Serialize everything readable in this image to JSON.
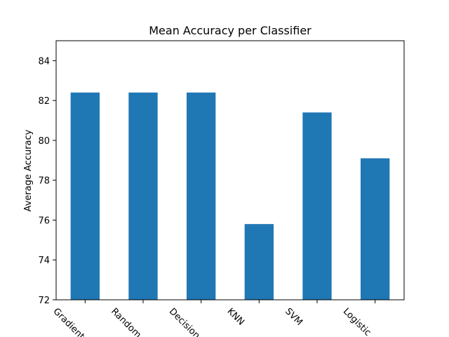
{
  "chart_data": {
    "type": "bar",
    "title": "Mean Accuracy per Classifier",
    "xlabel": "",
    "ylabel": "Average Accuracy",
    "categories": [
      "Gradient Boosting",
      "Random Forest",
      "Decision Tree",
      "KNN",
      "SVM",
      "Logistic Regression"
    ],
    "category_labels_visible": [
      "Gradient",
      "Random",
      "Decision",
      "KNN",
      "SVM",
      "Logistic"
    ],
    "values": [
      82.4,
      82.4,
      82.4,
      75.8,
      81.4,
      79.1
    ],
    "ylim": [
      72,
      85
    ],
    "yticks": [
      72,
      74,
      76,
      78,
      80,
      82,
      84
    ],
    "grid": false,
    "legend": "none",
    "bar_color": "#1f77b4",
    "xtick_rotation_deg": -45
  }
}
